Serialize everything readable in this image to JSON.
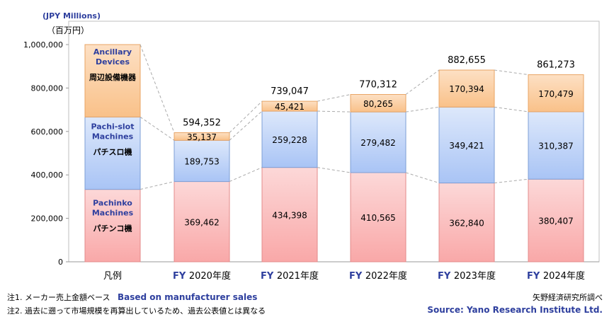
{
  "unit_en": "(JPY Millions)",
  "unit_jp": "（百万円）",
  "notes": {
    "note1_jp": "注1. メーカー売上金額ベース",
    "note1_en": "Based on manufacturer sales",
    "note2_jp": "注2. 過去に遡って市場規模を再算出しているため、過去公表値とは異なる",
    "source_jp": "矢野経済研究所調べ",
    "source_en": "Source: Yano Research Institute Ltd."
  },
  "legend": {
    "title": "凡例",
    "items": [
      {
        "en": [
          "Ancillary",
          "Devices"
        ],
        "jp": "周辺設備機器"
      },
      {
        "en": [
          "Pachi-slot",
          "Machines"
        ],
        "jp": "パチスロ機"
      },
      {
        "en": [
          "Pachinko",
          "Machines"
        ],
        "jp": "パチンコ機"
      }
    ]
  },
  "colors": {
    "pachinko": "#f9a8a8",
    "pachislot": "#a9c4f5",
    "ancillary": "#f9c189",
    "label_blue": "#2e3f9e",
    "connector": "#aaaaaa"
  },
  "chart_data": {
    "type": "bar",
    "stacked": true,
    "categories": [
      {
        "prefix": "FY",
        "year": "2020年度"
      },
      {
        "prefix": "FY",
        "year": "2021年度"
      },
      {
        "prefix": "FY",
        "year": "2022年度"
      },
      {
        "prefix": "FY",
        "year": "2023年度"
      },
      {
        "prefix": "FY",
        "year": "2024年度"
      }
    ],
    "series": [
      {
        "name": "Pachinko Machines パチンコ機",
        "values": [
          369462,
          434398,
          410565,
          362840,
          380407
        ]
      },
      {
        "name": "Pachi-slot Machines パチスロ機",
        "values": [
          189753,
          259228,
          279482,
          349421,
          310387
        ]
      },
      {
        "name": "Ancillary Devices 周辺設備機器",
        "values": [
          35137,
          45421,
          80265,
          170394,
          170479
        ]
      }
    ],
    "totals": [
      594352,
      739047,
      770312,
      882655,
      861273
    ],
    "ylim": [
      0,
      1000000
    ],
    "yticks": [
      0,
      200000,
      400000,
      600000,
      800000,
      1000000
    ],
    "grid": false,
    "legend_position": "left-column"
  }
}
